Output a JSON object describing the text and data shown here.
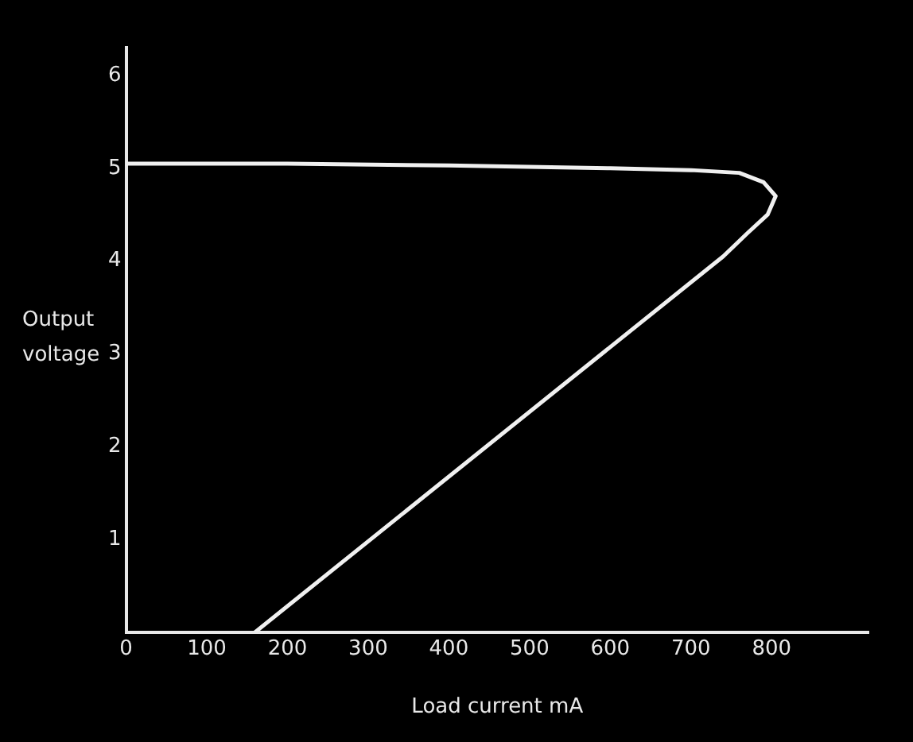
{
  "chart_data": {
    "type": "line",
    "xlabel": "Load current mA",
    "ylabel": "Output voltage",
    "series": [
      {
        "color": "#f0f0f0",
        "x": [
          0,
          200,
          400,
          600,
          700,
          760,
          790,
          805,
          795,
          770,
          740,
          160
        ],
        "values": [
          5.05,
          5.05,
          5.03,
          5.0,
          4.98,
          4.95,
          4.85,
          4.7,
          4.5,
          4.3,
          4.05,
          0
        ]
      }
    ],
    "xlim": [
      0,
      920
    ],
    "ylim": [
      0,
      6.3
    ],
    "xticks": [
      0,
      100,
      200,
      300,
      400,
      500,
      600,
      700,
      800
    ],
    "yticks": [
      1,
      2,
      3,
      4,
      5,
      6
    ],
    "grid": false,
    "legend": false,
    "marker": "none",
    "line_style": "solid"
  }
}
